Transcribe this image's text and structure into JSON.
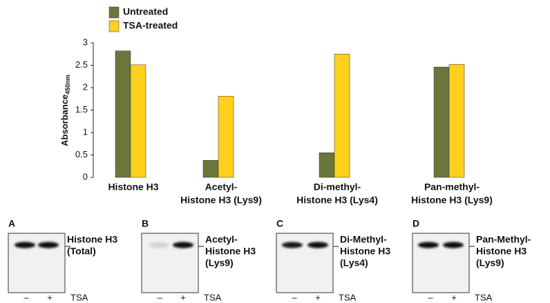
{
  "chart_data": {
    "type": "bar",
    "ylabel": "Absorbance",
    "ylabel_subscript": "450nm",
    "categories": [
      [
        "Histone H3"
      ],
      [
        "Acetyl-",
        "Histone H3 (Lys9)"
      ],
      [
        "Di-methyl-",
        "Histone H3 (Lys4)"
      ],
      [
        "Pan-methyl-",
        "Histone H3 (Lys9)"
      ]
    ],
    "series": [
      {
        "name": "Untreated",
        "color": "#6b763a",
        "values": [
          2.82,
          0.38,
          0.55,
          2.46
        ]
      },
      {
        "name": "TSA-treated",
        "color": "#ffd01e",
        "values": [
          2.51,
          1.81,
          2.75,
          2.52
        ]
      }
    ],
    "ylim": [
      0,
      3
    ],
    "yticks": [
      0,
      0.5,
      1,
      1.5,
      2,
      2.5,
      3
    ],
    "grid": false,
    "legend": "top-left"
  },
  "blots": [
    {
      "letter": "A",
      "label": [
        "Histone H3",
        "(Total)"
      ],
      "lanes": [
        "–",
        "+"
      ],
      "treatment": "TSA"
    },
    {
      "letter": "B",
      "label": [
        "Acetyl-",
        "Histone H3",
        "(Lys9)"
      ],
      "lanes": [
        "–",
        "+"
      ],
      "treatment": "TSA"
    },
    {
      "letter": "C",
      "label": [
        "Di-Methyl-",
        "Histone H3",
        "(Lys4)"
      ],
      "lanes": [
        "–",
        "+"
      ],
      "treatment": "TSA"
    },
    {
      "letter": "D",
      "label": [
        "Pan-Methyl-",
        "Histone H3",
        "(Lys9)"
      ],
      "lanes": [
        "–",
        "+"
      ],
      "treatment": "TSA"
    }
  ]
}
